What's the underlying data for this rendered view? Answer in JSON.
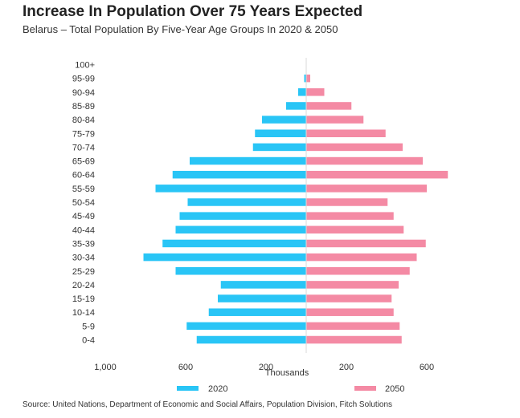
{
  "title": "Increase In Population Over 75 Years Expected",
  "subtitle": "Belarus – Total Population By Five-Year Age Groups In 2020 & 2050",
  "source": "Source: United Nations, Department of Economic and Social Affairs, Population Division, Fitch Solutions",
  "colors": {
    "2020": "#29c5f6",
    "2050": "#f48aa4"
  },
  "chart_data": {
    "type": "bar",
    "orientation": "horizontal-pyramid",
    "categories": [
      "100+",
      "95-99",
      "90-94",
      "85-89",
      "80-84",
      "75-79",
      "70-74",
      "65-69",
      "60-64",
      "55-59",
      "50-54",
      "45-49",
      "40-44",
      "35-39",
      "30-34",
      "25-29",
      "20-24",
      "15-19",
      "10-14",
      "5-9",
      "0-4"
    ],
    "series": [
      {
        "name": "2020",
        "side": "left",
        "values": [
          1,
          10,
          40,
          100,
          220,
          255,
          265,
          580,
          665,
          750,
          590,
          630,
          650,
          715,
          810,
          650,
          425,
          440,
          485,
          595,
          545
        ]
      },
      {
        "name": "2050",
        "side": "right",
        "values": [
          1,
          20,
          90,
          225,
          285,
          395,
          480,
          580,
          705,
          600,
          405,
          435,
          485,
          595,
          550,
          515,
          460,
          425,
          435,
          465,
          475
        ]
      }
    ],
    "xlabel": "Thousands",
    "xticks": [
      {
        "value": -1000,
        "label": "1,000"
      },
      {
        "value": -600,
        "label": "600"
      },
      {
        "value": -200,
        "label": "200"
      },
      {
        "value": 200,
        "label": "200"
      },
      {
        "value": 600,
        "label": "600"
      }
    ],
    "xlim": [
      -1000,
      1000
    ],
    "legend": {
      "position": "bottom",
      "entries": [
        "2020",
        "2050"
      ]
    },
    "grid": false
  }
}
